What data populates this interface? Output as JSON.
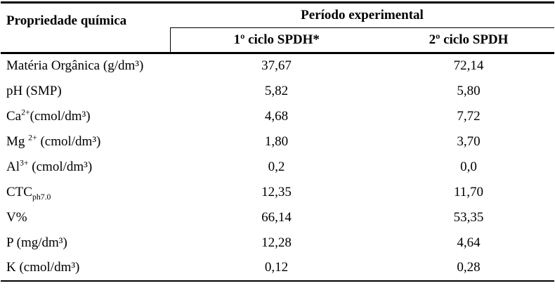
{
  "table": {
    "header": {
      "property_col": "Propriedade química",
      "group": "Período experimental",
      "sub1": "1º ciclo SPDH*",
      "sub2": "2º ciclo SPDH"
    },
    "rows": [
      {
        "label": {
          "pre": "Matéria Orgânica (g/dm³)"
        },
        "v1": "37,67",
        "v2": "72,14"
      },
      {
        "label": {
          "pre": "pH (SMP)"
        },
        "v1": "5,82",
        "v2": "5,80"
      },
      {
        "label": {
          "pre": "Ca",
          "sup": "2+",
          "post": "(cmol/dm³)"
        },
        "v1": "4,68",
        "v2": "7,72"
      },
      {
        "label": {
          "pre": "Mg ",
          "sup": "2+",
          "post": " (cmol/dm³)"
        },
        "v1": "1,80",
        "v2": "3,70"
      },
      {
        "label": {
          "pre": "Al",
          "sup": "3+",
          "post": " (cmol/dm³)"
        },
        "v1": "0,2",
        "v2": "0,0"
      },
      {
        "label": {
          "pre": "CTC",
          "sub": "ph7.0"
        },
        "v1": "12,35",
        "v2": "11,70"
      },
      {
        "label": {
          "pre": "V%"
        },
        "v1": "66,14",
        "v2": "53,35"
      },
      {
        "label": {
          "pre": "P (mg/dm³)"
        },
        "v1": "12,28",
        "v2": "4,64"
      },
      {
        "label": {
          "pre": "K (cmol/dm³)"
        },
        "v1": "0,12",
        "v2": "0,28"
      }
    ]
  }
}
